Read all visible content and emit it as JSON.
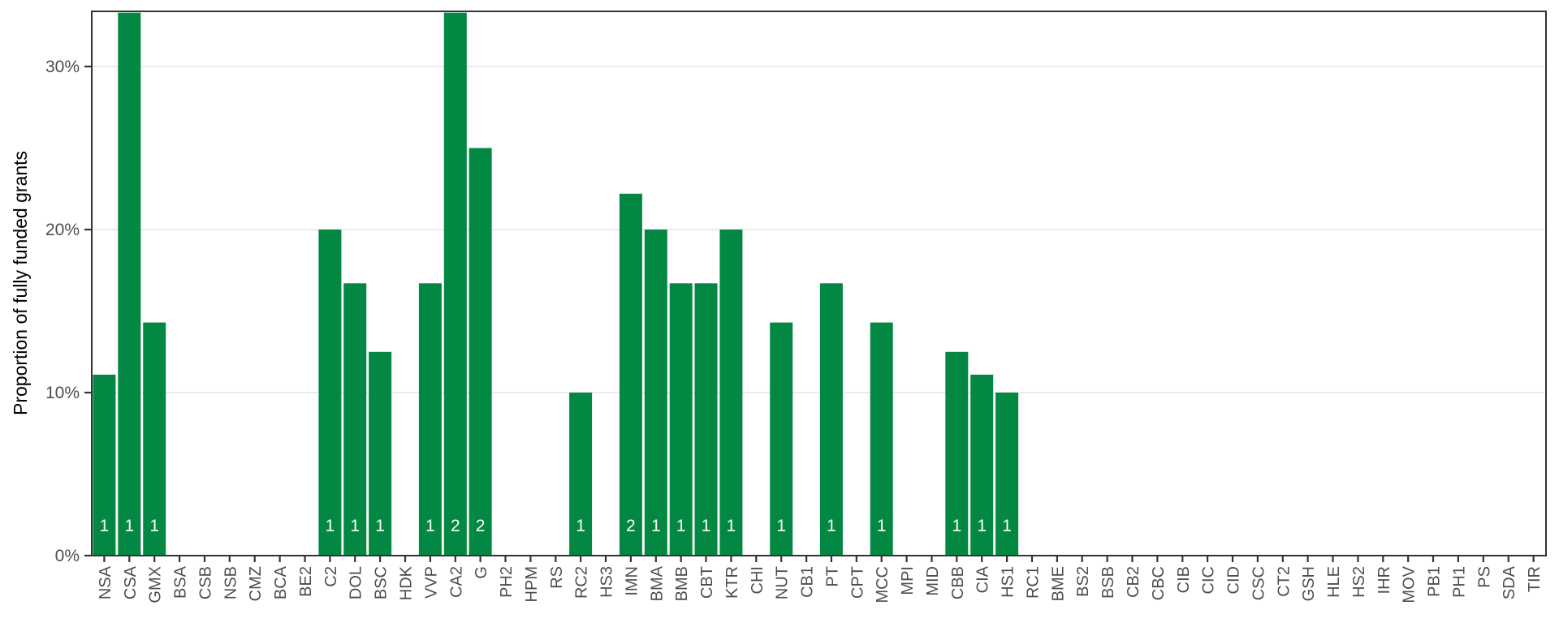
{
  "chart_data": {
    "type": "bar",
    "title": "",
    "xlabel": "",
    "ylabel": "Proportion of fully funded grants",
    "y_ticks": [
      {
        "value": 0,
        "label": "0%"
      },
      {
        "value": 10,
        "label": "10%"
      },
      {
        "value": 20,
        "label": "20%"
      },
      {
        "value": 30,
        "label": "30%"
      }
    ],
    "ylim": [
      0,
      33.4
    ],
    "grid": "major-horizontal-only",
    "legend": "none",
    "bar_color": "#028843",
    "bar_label_color": "#ffffff",
    "axis_text_color": "#4d4d4d",
    "panel_border_color": "#333333",
    "gridline_color": "#ebebeb",
    "categories": [
      "NSA",
      "CSA",
      "GMX",
      "BSA",
      "CSB",
      "NSB",
      "CMZ",
      "BCA",
      "BE2",
      "C2",
      "DOL",
      "BSC",
      "HDK",
      "VVP",
      "CA2",
      "G",
      "PH2",
      "HPM",
      "RS",
      "RC2",
      "HS3",
      "IMN",
      "BMA",
      "BMB",
      "CBT",
      "KTR",
      "CHI",
      "NUT",
      "CB1",
      "PT",
      "CPT",
      "MCC",
      "MPI",
      "MID",
      "CBB",
      "CIA",
      "HS1",
      "RC1",
      "BME",
      "BS2",
      "BSB",
      "CB2",
      "CBC",
      "CIB",
      "CIC",
      "CID",
      "CSC",
      "CT2",
      "GSH",
      "HLE",
      "HS2",
      "IHR",
      "MOV",
      "PB1",
      "PH1",
      "PS",
      "SDA",
      "TIR"
    ],
    "values": [
      11.1,
      33.3,
      14.3,
      0,
      0,
      0,
      0,
      0,
      0,
      20,
      16.7,
      12.5,
      0,
      16.7,
      33.3,
      25,
      0,
      0,
      0,
      10,
      0,
      22.2,
      20,
      16.7,
      16.7,
      20,
      0,
      14.3,
      0,
      16.7,
      0,
      14.3,
      0,
      0,
      12.5,
      11.1,
      10,
      0,
      0,
      0,
      0,
      0,
      0,
      0,
      0,
      0,
      0,
      0,
      0,
      0,
      0,
      0,
      0,
      0,
      0,
      0,
      0,
      0
    ],
    "bar_count_labels": [
      "1",
      "1",
      "1",
      "",
      "",
      "",
      "",
      "",
      "",
      "1",
      "1",
      "1",
      "",
      "1",
      "2",
      "2",
      "",
      "",
      "",
      "1",
      "",
      "2",
      "1",
      "1",
      "1",
      "1",
      "",
      "1",
      "",
      "1",
      "",
      "1",
      "",
      "",
      "1",
      "1",
      "1",
      "",
      "",
      "",
      "",
      "",
      "",
      "",
      "",
      "",
      "",
      "",
      "",
      "",
      "",
      "",
      "",
      "",
      "",
      "",
      "",
      ""
    ]
  }
}
